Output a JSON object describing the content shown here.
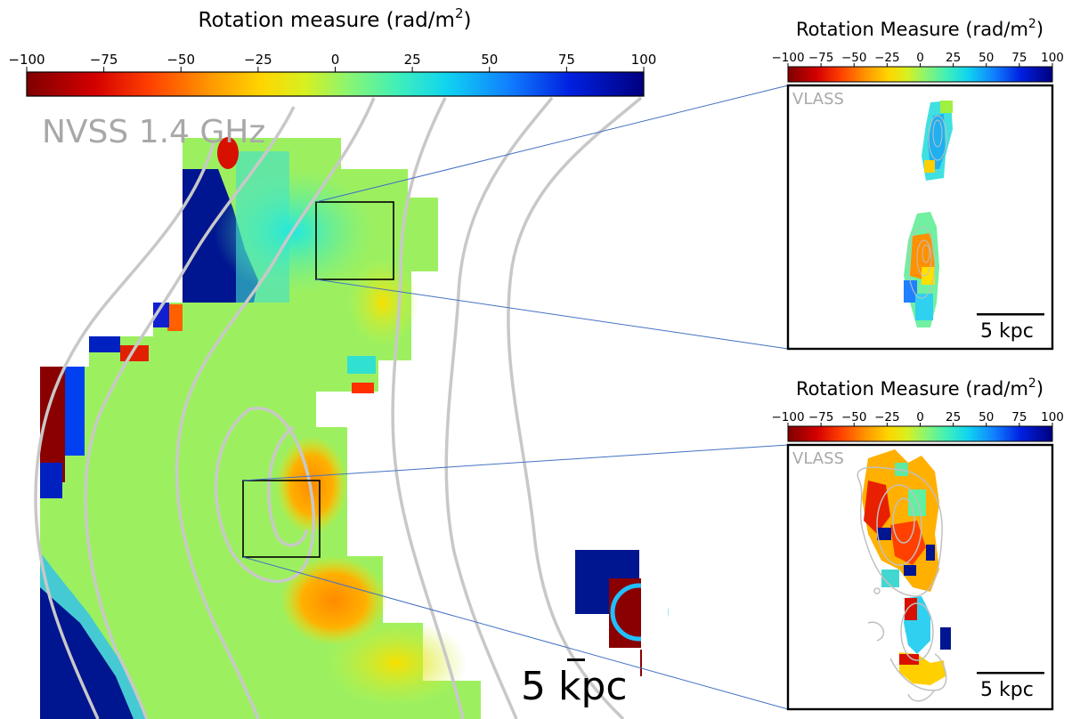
{
  "chart_data": {
    "type": "heatmap",
    "colorscale": "jet",
    "panels": [
      {
        "colorbar_title": "Rotation measure (rad/m",
        "colorbar_title_sup": "2",
        "colorbar_title_end": ")",
        "colorbar_range": [
          -100,
          100
        ],
        "colorbar_ticks": [
          "−100",
          "−75",
          "−50",
          "−25",
          "0",
          "25",
          "50",
          "75",
          "100"
        ],
        "survey_label": "NVSS 1.4 GHz",
        "scale_bar_label": "5 kpc"
      },
      {
        "colorbar_title": "Rotation Measure (rad/m",
        "colorbar_title_sup": "2",
        "colorbar_title_end": ")",
        "colorbar_range": [
          -100,
          100
        ],
        "colorbar_ticks": [
          "−100",
          "−75",
          "−50",
          "−25",
          "0",
          "25",
          "50",
          "75",
          "100"
        ],
        "survey_label": "VLASS",
        "scale_bar_label": "5 kpc"
      },
      {
        "colorbar_title": "Rotation Measure (rad/m",
        "colorbar_title_sup": "2",
        "colorbar_title_end": ")",
        "colorbar_range": [
          -100,
          100
        ],
        "colorbar_ticks": [
          "−100",
          "−75",
          "−50",
          "−25",
          "0",
          "25",
          "50",
          "75",
          "100"
        ],
        "survey_label": "VLASS",
        "scale_bar_label": "5 kpc"
      }
    ]
  }
}
